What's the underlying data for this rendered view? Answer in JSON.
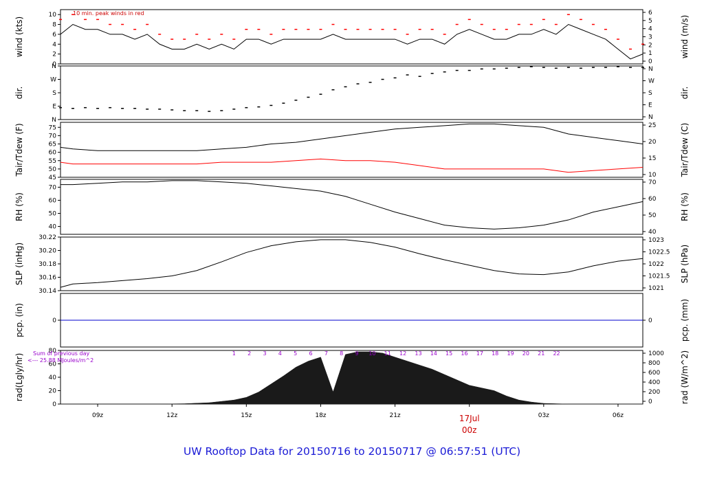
{
  "footer": {
    "title": "UW Rooftop Data for 20150716  to  20150717 @ 06:57:51  (UTC)"
  },
  "chart_data": [
    {
      "type": "line",
      "ylabel": "wind (kts)",
      "ylabel_right": "wind (m/s)",
      "ylim": [
        0,
        11
      ],
      "yticks": [
        "0",
        "2",
        "4",
        "6",
        "8",
        "10"
      ],
      "yticks_right": [
        "0",
        "1",
        "2",
        "3",
        "4",
        "5",
        "6"
      ],
      "annotation": "10 min. peak winds in red",
      "series": [
        {
          "color": "#000000",
          "x": [
            7.5,
            8,
            8.5,
            9,
            9.5,
            10,
            10.5,
            11,
            11.5,
            12,
            12.5,
            13,
            13.5,
            14,
            14.5,
            15,
            15.5,
            16,
            16.5,
            17,
            17.5,
            18,
            18.5,
            19,
            19.5,
            20,
            20.5,
            21,
            21.5,
            22,
            22.5,
            23,
            23.5,
            24,
            24.5,
            25,
            25.5,
            26,
            26.5,
            27,
            27.5,
            28,
            28.5,
            29,
            29.5,
            30,
            30.5,
            31
          ],
          "y": [
            6,
            8,
            7,
            7,
            6,
            6,
            5,
            6,
            4,
            3,
            3,
            4,
            3,
            4,
            3,
            5,
            5,
            4,
            5,
            5,
            5,
            5,
            6,
            5,
            5,
            5,
            5,
            5,
            4,
            5,
            5,
            4,
            6,
            7,
            6,
            5,
            5,
            6,
            6,
            7,
            6,
            8,
            7,
            6,
            5,
            3,
            1,
            2
          ]
        },
        {
          "color": "#ff0000",
          "marker": "dash",
          "x": [
            7.5,
            8,
            8.5,
            9,
            9.5,
            10,
            10.5,
            11,
            11.5,
            12,
            12.5,
            13,
            13.5,
            14,
            14.5,
            15,
            15.5,
            16,
            16.5,
            17,
            17.5,
            18,
            18.5,
            19,
            19.5,
            20,
            20.5,
            21,
            21.5,
            22,
            22.5,
            23,
            23.5,
            24,
            24.5,
            25,
            25.5,
            26,
            26.5,
            27,
            27.5,
            28,
            28.5,
            29,
            29.5,
            30,
            30.5,
            31
          ],
          "y": [
            9,
            10,
            9,
            9,
            8,
            8,
            7,
            8,
            6,
            5,
            5,
            6,
            5,
            6,
            5,
            7,
            7,
            6,
            7,
            7,
            7,
            7,
            8,
            7,
            7,
            7,
            7,
            7,
            6,
            7,
            7,
            6,
            8,
            9,
            8,
            7,
            7,
            8,
            8,
            9,
            8,
            10,
            9,
            8,
            7,
            5,
            3,
            4
          ]
        }
      ]
    },
    {
      "type": "scatter",
      "ylabel": "dir.",
      "ylabel_right": "dir.",
      "ylim": [
        0,
        360
      ],
      "yticks": [
        "N",
        "E",
        "S",
        "W",
        "N"
      ],
      "yticks_right": [
        "N",
        "E",
        "S",
        "W",
        "N"
      ],
      "series": [
        {
          "color": "#000000",
          "x": [
            7.5,
            8,
            8.5,
            9,
            9.5,
            10,
            10.5,
            11,
            11.5,
            12,
            12.5,
            13,
            13.5,
            14,
            14.5,
            15,
            15.5,
            16,
            16.5,
            17,
            17.5,
            18,
            18.5,
            19,
            19.5,
            20,
            20.5,
            21,
            21.5,
            22,
            22.5,
            23,
            23.5,
            24,
            24.5,
            25,
            25.5,
            26,
            26.5,
            27,
            27.5,
            28,
            28.5,
            29,
            29.5,
            30,
            30.5,
            31
          ],
          "y": [
            80,
            75,
            80,
            75,
            80,
            75,
            75,
            70,
            70,
            65,
            60,
            60,
            55,
            60,
            70,
            80,
            85,
            95,
            110,
            130,
            150,
            170,
            200,
            220,
            240,
            250,
            270,
            280,
            300,
            290,
            310,
            320,
            330,
            330,
            340,
            340,
            345,
            350,
            355,
            350,
            345,
            350,
            345,
            350,
            350,
            355,
            350,
            350
          ]
        }
      ]
    },
    {
      "type": "line",
      "ylabel": "Tair/Tdew (F)",
      "ylabel_right": "Tair/Tdew (C)",
      "ylim": [
        45,
        78
      ],
      "yticks": [
        "45",
        "50",
        "55",
        "60",
        "65",
        "70",
        "75"
      ],
      "yticks_right": [
        "10",
        "15",
        "20",
        "25"
      ],
      "series": [
        {
          "color": "#000000",
          "x": [
            7.5,
            8,
            9,
            10,
            11,
            12,
            13,
            14,
            15,
            16,
            17,
            18,
            19,
            20,
            21,
            22,
            23,
            24,
            25,
            26,
            27,
            28,
            29,
            30,
            31
          ],
          "y": [
            63,
            62,
            61,
            61,
            61,
            61,
            61,
            62,
            63,
            65,
            66,
            68,
            70,
            72,
            74,
            75,
            76,
            77,
            77,
            76,
            75,
            71,
            69,
            67,
            65
          ]
        },
        {
          "color": "#ff0000",
          "x": [
            7.5,
            8,
            9,
            10,
            11,
            12,
            13,
            14,
            15,
            16,
            17,
            18,
            19,
            20,
            21,
            22,
            23,
            24,
            25,
            26,
            27,
            28,
            29,
            30,
            31
          ],
          "y": [
            54,
            53,
            53,
            53,
            53,
            53,
            53,
            54,
            54,
            54,
            55,
            56,
            55,
            55,
            54,
            52,
            50,
            50,
            50,
            50,
            50,
            48,
            49,
            50,
            51
          ]
        }
      ]
    },
    {
      "type": "line",
      "ylabel": "RH (%)",
      "ylabel_right": "RH (%)",
      "ylim": [
        34,
        76
      ],
      "yticks": [
        "40",
        "50",
        "60",
        "70"
      ],
      "yticks_right": [
        "40",
        "50",
        "60",
        "70"
      ],
      "series": [
        {
          "color": "#000000",
          "x": [
            7.5,
            8,
            9,
            10,
            11,
            12,
            13,
            14,
            15,
            16,
            17,
            18,
            19,
            20,
            21,
            22,
            23,
            24,
            25,
            26,
            27,
            28,
            29,
            30,
            31
          ],
          "y": [
            72,
            72,
            73,
            74,
            74,
            75,
            75,
            74,
            73,
            71,
            69,
            67,
            63,
            57,
            51,
            46,
            41,
            39,
            38,
            39,
            41,
            45,
            51,
            55,
            59
          ]
        }
      ]
    },
    {
      "type": "line",
      "ylabel": "SLP (inHg)",
      "ylabel_right": "SLP (hPa)",
      "ylim": [
        30.14,
        30.22
      ],
      "yticks": [
        "30.14",
        "30.16",
        "30.18",
        "30.20",
        "30.22"
      ],
      "yticks_right": [
        "1021",
        "1021.5",
        "1022",
        "1022.5",
        "1023"
      ],
      "series": [
        {
          "color": "#000000",
          "x": [
            7.5,
            8,
            9,
            10,
            11,
            12,
            13,
            14,
            15,
            16,
            17,
            18,
            19,
            20,
            21,
            22,
            23,
            24,
            25,
            26,
            27,
            28,
            29,
            30,
            31
          ],
          "y": [
            30.145,
            30.15,
            30.152,
            30.155,
            30.158,
            30.162,
            30.17,
            30.183,
            30.197,
            30.207,
            30.213,
            30.216,
            30.216,
            30.212,
            30.205,
            30.195,
            30.186,
            30.178,
            30.17,
            30.165,
            30.164,
            30.168,
            30.177,
            30.184,
            30.188
          ]
        }
      ]
    },
    {
      "type": "line",
      "ylabel": "pcp. (in)",
      "ylabel_right": "pcp. (mm)",
      "ylim": [
        -1,
        1
      ],
      "yticks": [
        "0"
      ],
      "yticks_right": [
        "0"
      ],
      "series": [
        {
          "color": "#0000cc",
          "x": [
            7.5,
            31
          ],
          "y": [
            0,
            0
          ]
        }
      ]
    },
    {
      "type": "area",
      "ylabel": "rad(Lgly/hr)",
      "ylabel_right": "rad (W/m^2)",
      "ylim": [
        0,
        80
      ],
      "yticks": [
        "0",
        "20",
        "40",
        "60",
        "80"
      ],
      "yticks_right": [
        "0",
        "200",
        "400",
        "600",
        "800",
        "1000"
      ],
      "annotation_top": "Sum of previous day",
      "annotation_sub": "<--- 25.88 MJoules/m^2",
      "hour_labels": [
        "1",
        "2",
        "3",
        "4",
        "5",
        "6",
        "7",
        "8",
        "9",
        "10",
        "11",
        "12",
        "13",
        "14",
        "15",
        "16",
        "17",
        "18",
        "19",
        "20",
        "21",
        "22"
      ],
      "series": [
        {
          "color": "#1a1a1a",
          "x": [
            7.5,
            11.5,
            12.5,
            13.5,
            14,
            14.5,
            15,
            15.5,
            16,
            16.5,
            17,
            17.5,
            18,
            18.5,
            19,
            19.5,
            20,
            20.5,
            21,
            21.5,
            22,
            22.5,
            23,
            23.5,
            24,
            24.5,
            25,
            25.5,
            26,
            26.5,
            27,
            28,
            31
          ],
          "y": [
            0,
            0,
            0.5,
            2,
            4,
            6,
            10,
            18,
            30,
            42,
            55,
            64,
            70,
            18,
            74,
            78,
            78,
            76,
            70,
            64,
            58,
            52,
            44,
            36,
            28,
            24,
            20,
            12,
            6,
            3,
            1,
            0,
            0
          ]
        }
      ],
      "xticks": [
        "09z",
        "12z",
        "15z",
        "18z",
        "21z",
        "17Jul",
        "00z",
        "03z",
        "06z"
      ]
    }
  ]
}
